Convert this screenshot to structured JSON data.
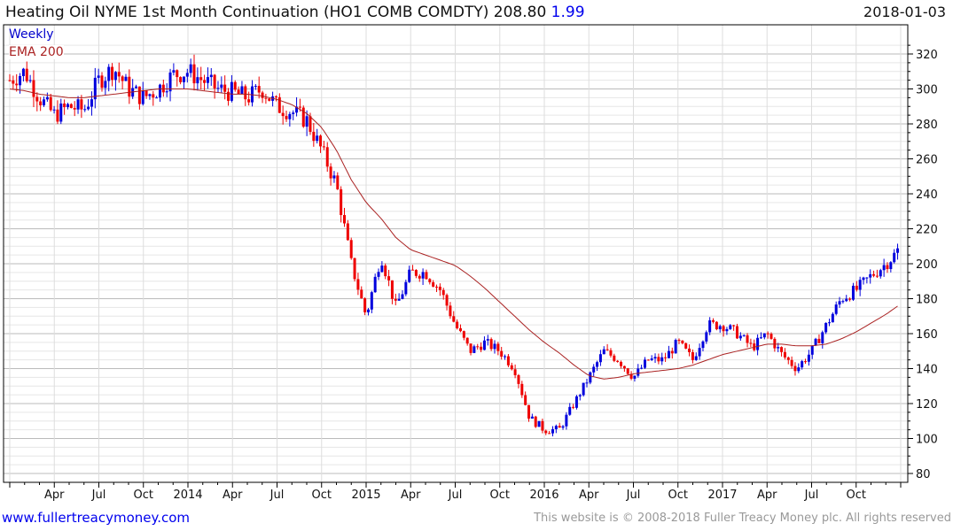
{
  "header": {
    "title": "Heating Oil NYME 1st Month Continuation (HO1 COMB COMDTY) 208.80",
    "change": "1.99",
    "date": "2018-01-03"
  },
  "footer": {
    "site": "www.fullertreacymoney.com",
    "copyright": "This website is © 2008-2018 Fuller Treacy Money plc. All rights reserved"
  },
  "colors": {
    "up": "#0000dd",
    "down": "#ee0000",
    "ema": "#aa2222"
  },
  "chart_data": {
    "type": "candlestick",
    "title": "Heating Oil NYME 1st Month Continuation (HO1 COMB COMDTY)",
    "frequency_label": "Weekly",
    "ema_label": "EMA 200",
    "last": 208.8,
    "change": 1.99,
    "ylim": [
      80,
      325
    ],
    "yticks": [
      80,
      100,
      120,
      140,
      160,
      180,
      200,
      220,
      240,
      260,
      280,
      300,
      320
    ],
    "xticks": [
      "Apr",
      "Jul",
      "Oct",
      "2014",
      "Apr",
      "Jul",
      "Oct",
      "2015",
      "Apr",
      "Jul",
      "Oct",
      "2016",
      "Apr",
      "Jul",
      "Oct",
      "2017",
      "Apr",
      "Jul",
      "Oct"
    ],
    "start": "2013-01",
    "monthly_close": [
      305,
      310,
      295,
      285,
      290,
      288,
      305,
      312,
      300,
      295,
      300,
      308,
      310,
      305,
      300,
      298,
      295,
      300,
      290,
      287,
      282,
      265,
      245,
      200,
      170,
      205,
      175,
      195,
      195,
      185,
      165,
      150,
      155,
      150,
      140,
      112,
      105,
      105,
      120,
      135,
      150,
      145,
      135,
      145,
      145,
      155,
      145,
      165,
      165,
      160,
      152,
      160,
      148,
      140,
      150,
      165,
      180,
      185,
      193,
      200,
      208.8
    ],
    "ema_monthly": [
      300,
      299,
      297,
      296,
      295,
      295,
      296,
      297,
      298,
      299,
      300,
      300,
      300,
      299,
      298,
      297,
      297,
      296,
      294,
      291,
      286,
      278,
      265,
      248,
      235,
      226,
      215,
      208,
      205,
      202,
      199,
      193,
      186,
      178,
      170,
      162,
      155,
      149,
      142,
      136,
      134,
      135,
      137,
      138,
      139,
      140,
      142,
      145,
      148,
      150,
      152,
      154,
      154,
      153,
      153,
      154,
      157,
      161,
      166,
      171,
      177
    ]
  }
}
